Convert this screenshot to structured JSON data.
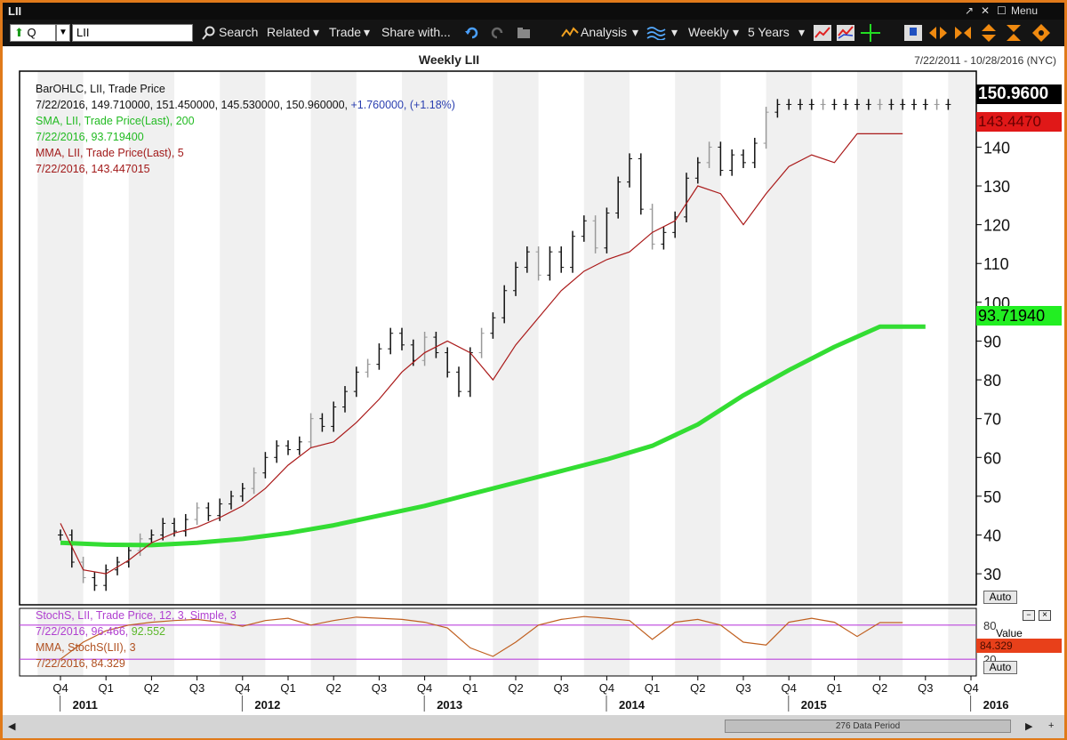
{
  "window": {
    "title": "LII",
    "controls": [
      "↗",
      "✕",
      "☐",
      "Menu"
    ]
  },
  "toolbar": {
    "symbol_prefix": "Q",
    "symbol_value": "LII",
    "items": [
      "Search",
      "Related",
      "Trade",
      "Share with...",
      "Analysis",
      "Weekly",
      "5 Years"
    ]
  },
  "chart_title": "Weekly LII",
  "date_range": "7/22/2011 - 10/28/2016 (NYC)",
  "legend": {
    "line1": "BarOHLC, LII, Trade Price",
    "line2": "7/22/2016, 149.710000, 151.450000, 145.530000, 150.960000, ",
    "line2_change": "+1.760000, (+1.18%)",
    "line3": "SMA, LII, Trade Price(Last), 200",
    "line4": "7/22/2016, 93.719400",
    "line5": "MMA, LII, Trade Price(Last), 5",
    "line6": "7/22/2016, 143.447015"
  },
  "price_tags": {
    "last": "150.9600",
    "mma": "143.4470",
    "sma": "93.71940"
  },
  "auto_label": "Auto",
  "stoch_legend": {
    "line1": "StochS, LII, Trade Price, 12, 3, Simple, 3",
    "line2a": "7/22/2016, 96.466, ",
    "line2b": "92.552",
    "line3": "MMA, StochS(LII), 3",
    "line4": "7/22/2016, 84.329"
  },
  "stoch_panel": {
    "value_label": "Value",
    "value_tag": "84.329",
    "scale_80": "80",
    "scale_20": "20"
  },
  "status": {
    "data_period": "276 Data Period"
  },
  "colors": {
    "sma": "#33dd33",
    "mma": "#aa1a1a",
    "bars": "#111111",
    "stoch": "#c06020",
    "band": "#bb44dd"
  },
  "chart_data": [
    {
      "type": "line",
      "title": "Weekly LII",
      "ylim": [
        22,
        155
      ],
      "yticks": [
        30,
        40,
        50,
        60,
        70,
        80,
        90,
        100,
        110,
        120,
        130,
        140
      ],
      "x_quarters": [
        "Q4",
        "Q1",
        "Q2",
        "Q3",
        "Q4",
        "Q1",
        "Q2",
        "Q3",
        "Q4",
        "Q1",
        "Q2",
        "Q3",
        "Q4",
        "Q1",
        "Q2",
        "Q3",
        "Q4",
        "Q1",
        "Q2",
        "Q3",
        "Q4"
      ],
      "x_years": [
        "2011",
        "2012",
        "2013",
        "2014",
        "2015",
        "2016"
      ],
      "series": [
        {
          "name": "BarOHLC, LII, Trade Price",
          "x": [
            0,
            0.25,
            0.5,
            0.75,
            1,
            1.25,
            1.5,
            1.75,
            2,
            2.25,
            2.5,
            2.75,
            3,
            3.25,
            3.5,
            3.75,
            4,
            4.25,
            4.5,
            4.75,
            5,
            5.25,
            5.5,
            5.75,
            6,
            6.25,
            6.5,
            6.75,
            7,
            7.25,
            7.5,
            7.75,
            8,
            8.25,
            8.5,
            8.75,
            9,
            9.25,
            9.5,
            9.75,
            10,
            10.25,
            10.5,
            10.75,
            11,
            11.25,
            11.5,
            11.75,
            12,
            12.25,
            12.5,
            12.75,
            13,
            13.25,
            13.5,
            13.75,
            14,
            14.25,
            14.5,
            14.75,
            15,
            15.25,
            15.5,
            15.75,
            16,
            16.25,
            16.5,
            16.75,
            17,
            17.25,
            17.5,
            17.75,
            18,
            18.25,
            18.5,
            18.75,
            19,
            19.25,
            19.5
          ],
          "values": [
            40,
            33,
            29,
            27,
            31,
            33,
            36,
            39,
            40,
            43,
            41,
            44,
            47,
            45,
            48,
            50,
            52,
            56,
            60,
            63,
            62,
            64,
            70,
            68,
            73,
            77,
            82,
            84,
            88,
            92,
            89,
            85,
            91,
            87,
            82,
            77,
            87,
            92,
            96,
            103,
            109,
            113,
            107,
            113,
            109,
            117,
            121,
            114,
            123,
            131,
            137,
            124,
            115,
            118,
            122,
            132,
            136,
            140,
            134,
            138,
            136,
            141,
            149,
            151,
            151,
            151,
            151,
            151,
            151,
            151,
            151,
            151,
            151,
            151,
            151,
            151,
            151,
            151,
            151
          ]
        },
        {
          "name": "SMA, LII, Trade Price(Last), 200",
          "x": [
            0,
            1,
            2,
            3,
            4,
            5,
            6,
            7,
            8,
            9,
            10,
            11,
            12,
            13,
            14,
            15,
            16,
            17,
            18,
            19
          ],
          "values": [
            38,
            37.5,
            37.4,
            38,
            39,
            40.5,
            42.5,
            45,
            47.5,
            50.5,
            53.5,
            56.5,
            59.5,
            63,
            68.5,
            76,
            82.5,
            88.5,
            93.72,
            93.72
          ]
        },
        {
          "name": "MMA, LII, Trade Price(Last), 5",
          "x": [
            0,
            0.5,
            1,
            1.5,
            2,
            2.5,
            3,
            3.5,
            4,
            4.5,
            5,
            5.5,
            6,
            6.5,
            7,
            7.5,
            8,
            8.5,
            9,
            9.5,
            10,
            10.5,
            11,
            11.5,
            12,
            12.5,
            13,
            13.5,
            14,
            14.5,
            15,
            15.5,
            16,
            16.5,
            17,
            17.5,
            18,
            18.5
          ],
          "values": [
            43,
            31,
            30,
            33.5,
            38,
            40.5,
            42,
            44.5,
            47.5,
            52,
            58,
            62.5,
            64,
            69,
            75,
            82,
            87,
            90,
            87,
            80,
            89,
            96,
            103,
            108,
            111,
            113,
            118,
            121,
            130,
            128,
            120,
            128,
            135,
            138,
            136,
            143.45,
            143.45,
            143.45
          ]
        }
      ]
    },
    {
      "type": "line",
      "title": "StochS, LII, Trade Price, 12, 3, Simple, 3",
      "ylim": [
        0,
        100
      ],
      "bands": [
        80,
        20
      ],
      "series": [
        {
          "name": "StochS, LII, Trade Price, 12, 3, Simple, 3",
          "x": [
            0,
            0.5,
            1,
            1.5,
            2,
            2.5,
            3,
            3.5,
            4,
            4.5,
            5,
            5.5,
            6,
            6.5,
            7,
            7.5,
            8,
            8.5,
            9,
            9.5,
            10,
            10.5,
            11,
            11.5,
            12,
            12.5,
            13,
            13.5,
            14,
            14.5,
            15,
            15.5,
            16,
            16.5,
            17,
            17.5,
            18,
            18.5
          ],
          "values": [
            20,
            50,
            70,
            80,
            85,
            88,
            90,
            85,
            78,
            88,
            92,
            80,
            88,
            94,
            92,
            90,
            85,
            75,
            40,
            25,
            50,
            80,
            90,
            95,
            92,
            88,
            55,
            85,
            90,
            80,
            50,
            45,
            85,
            92,
            85,
            60,
            84.329,
            84.329
          ]
        }
      ]
    }
  ]
}
